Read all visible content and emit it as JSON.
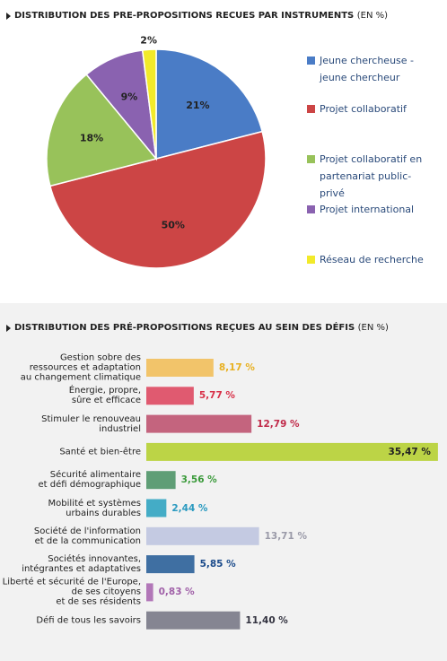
{
  "chart_data": [
    {
      "type": "pie",
      "title": "DISTRIBUTION DES PRE-PROPOSITIONS RECUES PAR INSTRUMENTS",
      "title_note": "(EN %)",
      "categories": [
        "Jeune chercheuse - jeune chercheur",
        "Projet collaboratif",
        "Projet collaboratif en partenariat public-privé",
        "Projet international",
        "Réseau de recherche"
      ],
      "values": [
        21,
        50,
        18,
        9,
        2
      ],
      "value_labels": [
        "21%",
        "50%",
        "18%",
        "9%",
        "2%"
      ],
      "colors": [
        "#4a7cc6",
        "#cc4545",
        "#98c25a",
        "#8a62b0",
        "#f2ea2a"
      ]
    },
    {
      "type": "bar",
      "title": "DISTRIBUTION DES PRÉ-PROPOSITIONS REÇUES AU SEIN DES DÉFIS",
      "title_note": "(EN %)",
      "categories": [
        "Gestion sobre des\nressources et adaptation\nau changement climatique",
        "Énergie, propre,\nsûre et efficace",
        "Stimuler le renouveau\nindustriel",
        "Santé et bien-être",
        "Sécurité alimentaire\net défi démographique",
        "Mobilité et systèmes\nurbains durables",
        "Société de l'information\net de la communication",
        "Sociétés innovantes,\nintégrantes et adaptatives",
        "Liberté et sécurité de l'Europe,\nde ses citoyens\net de ses résidents",
        "Défi de tous les savoirs"
      ],
      "values": [
        8.17,
        5.77,
        12.79,
        35.47,
        3.56,
        2.44,
        13.71,
        5.85,
        0.83,
        11.4
      ],
      "value_labels": [
        "8,17 %",
        "5,77 %",
        "12,79 %",
        "35,47 %",
        "3,56 %",
        "2,44 %",
        "13,71 %",
        "5,85 %",
        "0,83 %",
        "11,40 %"
      ],
      "colors": [
        "#f2c46a",
        "#e05a70",
        "#c4647e",
        "#bcd446",
        "#5f9e76",
        "#44acc6",
        "#c4cae2",
        "#3f6fa2",
        "#b277b8",
        "#858592"
      ],
      "label_colors": [
        "#e8b020",
        "#d83048",
        "#c02848",
        "#222222",
        "#3a9a3a",
        "#2a9ac0",
        "#9a9aa8",
        "#1a4a8a",
        "#a060a8",
        "#333340"
      ]
    }
  ]
}
